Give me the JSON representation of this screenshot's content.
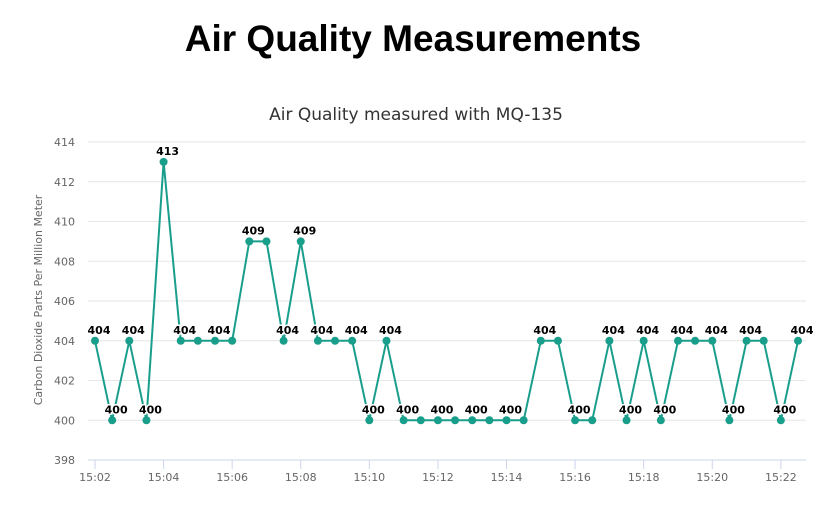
{
  "page": {
    "title": "Air Quality Measurements"
  },
  "colors": {
    "series": "#1a9e8c",
    "grid": "#e6e6e6",
    "axis": "#ccd6eb"
  },
  "chart_data": {
    "type": "line",
    "title": "Air Quality measured with MQ-135",
    "xlabel": "",
    "ylabel": "Carbon Dioxide Parts Per Million Meter",
    "x_start": "15:02:00",
    "x_step_seconds": 30,
    "xlim": [
      "15:02:00",
      "15:22:30"
    ],
    "ylim": [
      398,
      414
    ],
    "y_ticks": [
      398,
      400,
      402,
      404,
      406,
      408,
      410,
      412,
      414
    ],
    "x_ticks": [
      "15:02",
      "15:04",
      "15:06",
      "15:08",
      "15:10",
      "15:12",
      "15:14",
      "15:16",
      "15:18",
      "15:20",
      "15:22"
    ],
    "grid": true,
    "legend": "none",
    "series": [
      {
        "values": [
          404,
          400,
          404,
          400,
          413,
          404,
          404,
          404,
          404,
          409,
          409,
          404,
          409,
          404,
          404,
          404,
          400,
          404,
          400,
          400,
          400,
          400,
          400,
          400,
          400,
          400,
          404,
          404,
          400,
          400,
          404,
          400,
          404,
          400,
          404,
          404,
          404,
          400,
          404,
          404,
          400,
          404
        ],
        "labels": [
          "404",
          "400",
          "404",
          "400",
          "413",
          "404",
          "",
          "404",
          "",
          "409",
          "",
          "404",
          "409",
          "404",
          "",
          "404",
          "400",
          "404",
          "400",
          "",
          "400",
          "",
          "400",
          "",
          "400",
          "",
          "404",
          "",
          "400",
          "",
          "404",
          "400",
          "404",
          "400",
          "404",
          "",
          "404",
          "400",
          "404",
          "",
          "400",
          "404"
        ]
      }
    ]
  }
}
